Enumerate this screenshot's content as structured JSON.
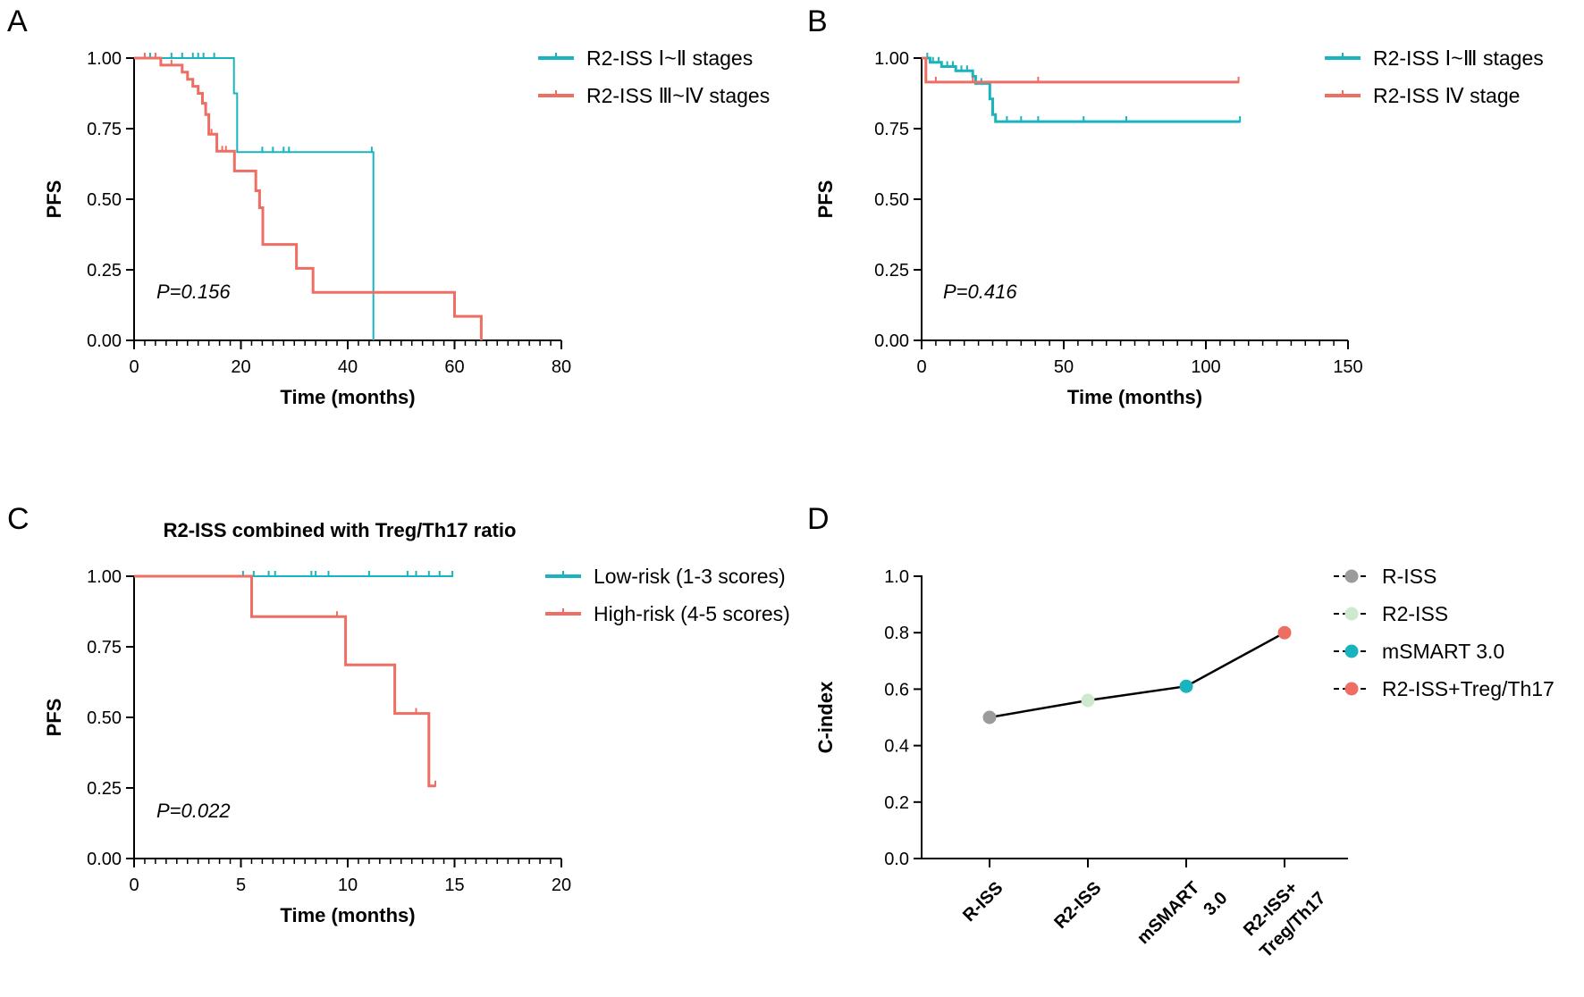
{
  "colors": {
    "teal": "#19b4bd",
    "salmon": "#ee6e64",
    "axis": "#000000"
  },
  "chart_data": [
    {
      "panel": "A",
      "type": "line",
      "title": "",
      "xlabel": "Time (months)",
      "ylabel": "PFS",
      "xlim": [
        0,
        80
      ],
      "ylim": [
        0,
        1
      ],
      "xticks": [
        "0",
        "20",
        "40",
        "60",
        "80"
      ],
      "yticks": [
        "0.00",
        "0.25",
        "0.50",
        "0.75",
        "1.00"
      ],
      "xtick_values": [
        0,
        20,
        40,
        60,
        80
      ],
      "ytick_values": [
        0,
        0.25,
        0.5,
        0.75,
        1
      ],
      "minor_x_step": 2,
      "p_value": "P=0.156",
      "series": [
        {
          "name": "R2-ISS Ⅰ~Ⅱ stages",
          "color": "#19b4bd",
          "width": 2,
          "steps": [
            [
              0,
              1
            ],
            [
              18.7,
              1
            ],
            [
              18.7,
              0.875
            ],
            [
              19.3,
              0.875
            ],
            [
              19.3,
              0.667
            ],
            [
              44.8,
              0.667
            ],
            [
              44.8,
              0
            ]
          ],
          "censors": [
            [
              3,
              1
            ],
            [
              7,
              1
            ],
            [
              9,
              1
            ],
            [
              11,
              1
            ],
            [
              12,
              1
            ],
            [
              13,
              1
            ],
            [
              15,
              1
            ],
            [
              24,
              0.667
            ],
            [
              26,
              0.667
            ],
            [
              28,
              0.667
            ],
            [
              29,
              0.667
            ],
            [
              44.5,
              0.667
            ]
          ]
        },
        {
          "name": "R2-ISS Ⅲ~Ⅳ stages",
          "color": "#ee6e64",
          "width": 3,
          "steps": [
            [
              0,
              1
            ],
            [
              5,
              1
            ],
            [
              5,
              0.975
            ],
            [
              9,
              0.975
            ],
            [
              9,
              0.95
            ],
            [
              10,
              0.95
            ],
            [
              10,
              0.925
            ],
            [
              11,
              0.925
            ],
            [
              11,
              0.9
            ],
            [
              12,
              0.9
            ],
            [
              12,
              0.875
            ],
            [
              12.8,
              0.875
            ],
            [
              12.8,
              0.84
            ],
            [
              13.4,
              0.84
            ],
            [
              13.4,
              0.8
            ],
            [
              14,
              0.8
            ],
            [
              14,
              0.73
            ],
            [
              15.5,
              0.73
            ],
            [
              15.5,
              0.67
            ],
            [
              18.8,
              0.67
            ],
            [
              18.8,
              0.6
            ],
            [
              22.8,
              0.6
            ],
            [
              22.8,
              0.53
            ],
            [
              23.5,
              0.53
            ],
            [
              23.5,
              0.47
            ],
            [
              24.1,
              0.47
            ],
            [
              24.1,
              0.34
            ],
            [
              30.4,
              0.34
            ],
            [
              30.4,
              0.255
            ],
            [
              33.5,
              0.255
            ],
            [
              33.5,
              0.17
            ],
            [
              60,
              0.17
            ],
            [
              60,
              0.085
            ],
            [
              65,
              0.085
            ],
            [
              65,
              0
            ]
          ],
          "censors": [
            [
              2,
              1
            ],
            [
              4,
              1
            ],
            [
              7,
              0.975
            ],
            [
              14.5,
              0.73
            ],
            [
              16.5,
              0.67
            ],
            [
              17.2,
              0.67
            ]
          ]
        }
      ]
    },
    {
      "panel": "B",
      "type": "line",
      "title": "",
      "xlabel": "Time (months)",
      "ylabel": "PFS",
      "xlim": [
        0,
        150
      ],
      "ylim": [
        0,
        1
      ],
      "xticks": [
        "0",
        "50",
        "100",
        "150"
      ],
      "yticks": [
        "0.00",
        "0.25",
        "0.50",
        "0.75",
        "1.00"
      ],
      "xtick_values": [
        0,
        50,
        100,
        150
      ],
      "ytick_values": [
        0,
        0.25,
        0.5,
        0.75,
        1
      ],
      "minor_x_step": 5,
      "p_value": "P=0.416",
      "series": [
        {
          "name": "R2-ISS Ⅰ~Ⅲ stages",
          "color": "#19b4bd",
          "width": 3,
          "steps": [
            [
              0,
              1
            ],
            [
              3,
              1
            ],
            [
              3,
              0.985
            ],
            [
              7,
              0.985
            ],
            [
              7,
              0.97
            ],
            [
              12,
              0.97
            ],
            [
              12,
              0.955
            ],
            [
              18,
              0.955
            ],
            [
              18,
              0.935
            ],
            [
              19,
              0.935
            ],
            [
              19,
              0.91
            ],
            [
              24,
              0.91
            ],
            [
              24,
              0.855
            ],
            [
              25,
              0.855
            ],
            [
              25,
              0.8
            ],
            [
              26,
              0.8
            ],
            [
              26,
              0.775
            ],
            [
              112,
              0.775
            ]
          ],
          "censors": [
            [
              2,
              1
            ],
            [
              4,
              0.985
            ],
            [
              6,
              0.985
            ],
            [
              9,
              0.97
            ],
            [
              11,
              0.97
            ],
            [
              14,
              0.955
            ],
            [
              16,
              0.955
            ],
            [
              21,
              0.91
            ],
            [
              30,
              0.775
            ],
            [
              35,
              0.775
            ],
            [
              41,
              0.775
            ],
            [
              57,
              0.775
            ],
            [
              72,
              0.775
            ],
            [
              112,
              0.775
            ]
          ]
        },
        {
          "name": "R2-ISS Ⅳ stage",
          "color": "#ee6e64",
          "width": 3,
          "steps": [
            [
              0,
              1
            ],
            [
              1.5,
              1
            ],
            [
              1.5,
              0.915
            ],
            [
              111.5,
              0.915
            ]
          ],
          "censors": [
            [
              5,
              0.915
            ],
            [
              18,
              0.915
            ],
            [
              41,
              0.915
            ],
            [
              111.5,
              0.915
            ]
          ]
        }
      ]
    },
    {
      "panel": "C",
      "type": "line",
      "title": "R2-ISS combined with Treg/Th17 ratio",
      "xlabel": "Time (months)",
      "ylabel": "PFS",
      "xlim": [
        0,
        20
      ],
      "ylim": [
        0,
        1
      ],
      "xticks": [
        "0",
        "5",
        "10",
        "15",
        "20"
      ],
      "yticks": [
        "0.00",
        "0.25",
        "0.50",
        "0.75",
        "1.00"
      ],
      "xtick_values": [
        0,
        5,
        10,
        15,
        20
      ],
      "ytick_values": [
        0,
        0.25,
        0.5,
        0.75,
        1
      ],
      "minor_x_step": 0.5,
      "p_value": "P=0.022",
      "series": [
        {
          "name": "Low-risk (1-3 scores)",
          "color": "#19b4bd",
          "width": 2,
          "steps": [
            [
              0,
              1
            ],
            [
              14.9,
              1
            ]
          ],
          "censors": [
            [
              5.1,
              1
            ],
            [
              5.6,
              1
            ],
            [
              6.3,
              1
            ],
            [
              6.6,
              1
            ],
            [
              8.3,
              1
            ],
            [
              8.5,
              1
            ],
            [
              9.1,
              1
            ],
            [
              11,
              1
            ],
            [
              12.8,
              1
            ],
            [
              13.2,
              1
            ],
            [
              13.8,
              1
            ],
            [
              14.3,
              1
            ],
            [
              14.9,
              1
            ]
          ]
        },
        {
          "name": "High-risk (4-5 scores)",
          "color": "#ee6e64",
          "width": 3,
          "steps": [
            [
              0,
              1
            ],
            [
              5.5,
              1
            ],
            [
              5.5,
              0.857
            ],
            [
              9.9,
              0.857
            ],
            [
              9.9,
              0.686
            ],
            [
              12.2,
              0.686
            ],
            [
              12.2,
              0.514
            ],
            [
              13.8,
              0.514
            ],
            [
              13.8,
              0.257
            ],
            [
              14.1,
              0.257
            ]
          ],
          "censors": [
            [
              9.5,
              0.857
            ],
            [
              13.2,
              0.514
            ],
            [
              14.1,
              0.257
            ]
          ]
        }
      ]
    },
    {
      "panel": "D",
      "type": "scatter",
      "title": "",
      "xlabel": "",
      "ylabel": "C-index",
      "ylim": [
        0,
        1
      ],
      "yticks": [
        "0.0",
        "0.2",
        "0.4",
        "0.6",
        "0.8",
        "1.0"
      ],
      "ytick_values": [
        0,
        0.2,
        0.4,
        0.6,
        0.8,
        1.0
      ],
      "categories": [
        {
          "lines": [
            "R-ISS"
          ]
        },
        {
          "lines": [
            "R2-ISS"
          ]
        },
        {
          "lines": [
            "mSMART",
            "3.0"
          ]
        },
        {
          "lines": [
            "R2-ISS+",
            "Treg/Th17"
          ]
        }
      ],
      "series": [
        {
          "name": "R-ISS",
          "color": "#9b9b9b",
          "value": 0.5
        },
        {
          "name": "R2-ISS",
          "color": "#cfe9cf",
          "value": 0.56
        },
        {
          "name": "mSMART  3.0",
          "color": "#19b4bd",
          "value": 0.61
        },
        {
          "name": "R2-ISS+Treg/Th17",
          "color": "#ee6e64",
          "value": 0.8
        }
      ]
    }
  ]
}
